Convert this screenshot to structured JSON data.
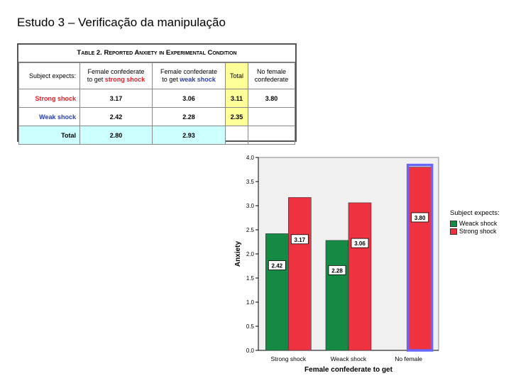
{
  "slide": {
    "title": "Estudo 3 – Verificação da manipulação"
  },
  "table": {
    "caption": "Table 2. Reported Anxiety in Experimental Condition",
    "corner_label": "Subject expects:",
    "col_headers": {
      "female_strong_line1": "Female confederate",
      "female_strong_line2_prefix": "to get ",
      "female_strong_line2_emph": "strong shock",
      "female_weak_line1": "Female confederate",
      "female_weak_line2_prefix": "to get ",
      "female_weak_line2_emph": "weak shock",
      "total": "Total",
      "no_female_line1": "No female",
      "no_female_line2": "confederate"
    },
    "rows": {
      "strong": {
        "label": "Strong shock",
        "female_strong": "3.17",
        "female_weak": "3.06",
        "total": "3.11",
        "no_female": "3.80"
      },
      "weak": {
        "label": "Weak shock",
        "female_strong": "2.42",
        "female_weak": "2.28",
        "total": "2.35",
        "no_female": ""
      },
      "total": {
        "label": "Total",
        "female_strong": "2.80",
        "female_weak": "2.93"
      }
    },
    "colors": {
      "red": "#e0202a",
      "blue": "#2a3fb0",
      "yellow": "#ffff99",
      "cyan": "#ccffff"
    }
  },
  "chart_data": {
    "type": "bar",
    "categories": [
      "Strong shock",
      "Weack shock",
      "No female"
    ],
    "series": [
      {
        "name": "Weack shock",
        "color": "#148a44",
        "values": [
          2.42,
          2.28,
          null
        ],
        "labels": [
          "2.42",
          "2.28",
          ""
        ]
      },
      {
        "name": "Strong shock",
        "color": "#ee3240",
        "values": [
          3.17,
          3.06,
          3.8
        ],
        "labels": [
          "3.17",
          "3.06",
          "3.80"
        ]
      }
    ],
    "xlabel": "Female confederate to get",
    "ylabel": "Anxiety",
    "ylim": [
      0,
      4
    ],
    "yticks": [
      "0.0",
      "0.5",
      "1.0",
      "1.5",
      "2.0",
      "2.5",
      "3.0",
      "3.5",
      "4.0"
    ],
    "legend_title": "Subject expects:",
    "legend_placement": "right",
    "highlight": {
      "category": "No female",
      "color": "#6666ff"
    },
    "plot_background": "#f0f0f0"
  }
}
